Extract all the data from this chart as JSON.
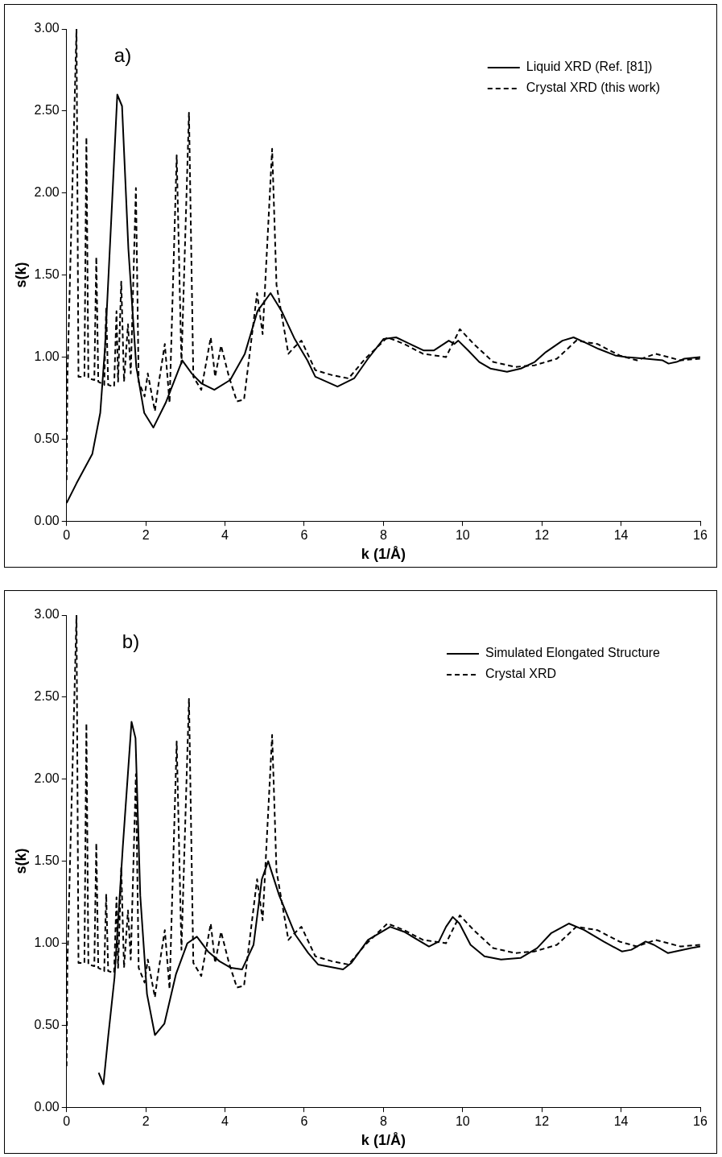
{
  "chart_data": [
    {
      "type": "line",
      "xlabel": "k (1/Å)",
      "ylabel": "s(k)",
      "annotations": [
        "a)"
      ],
      "legend": "top right",
      "marker": "none",
      "grid": false,
      "xlim": [
        0,
        16
      ],
      "xticks": [
        0,
        2,
        4,
        6,
        8,
        10,
        12,
        14,
        16
      ],
      "ylim": [
        0,
        3
      ],
      "yticks": [
        {
          "value": 0,
          "label": "0.00"
        },
        {
          "value": 0.5,
          "label": "0.50"
        },
        {
          "value": 1,
          "label": "1.00"
        },
        {
          "value": 1.5,
          "label": "1.50"
        },
        {
          "value": 2,
          "label": "2.00"
        },
        {
          "value": 2.5,
          "label": "2.50"
        },
        {
          "value": 3,
          "label": "3.00"
        }
      ],
      "series": [
        {
          "name": "Liquid XRD (Ref. [81])",
          "color": "#000000",
          "line_style": "solid",
          "x": [
            0,
            0.25,
            0.65,
            0.85,
            0.97,
            1.13,
            1.28,
            1.4,
            1.56,
            1.76,
            1.96,
            2.19,
            2.5,
            2.92,
            3.16,
            3.4,
            3.73,
            4.13,
            4.5,
            4.82,
            5.15,
            5.43,
            5.76,
            6.08,
            6.28,
            6.84,
            7.26,
            7.61,
            8.0,
            8.32,
            9.02,
            9.27,
            9.65,
            9.79,
            9.89,
            10.14,
            10.42,
            10.7,
            11.12,
            11.47,
            11.82,
            12.1,
            12.52,
            12.8,
            13.08,
            13.43,
            13.85,
            14.13,
            14.62,
            15.05,
            15.2,
            15.4,
            15.6,
            16
          ],
          "values": [
            0.11,
            0.23,
            0.41,
            0.66,
            1.06,
            1.85,
            2.6,
            2.53,
            1.66,
            0.94,
            0.66,
            0.57,
            0.72,
            0.98,
            0.9,
            0.84,
            0.8,
            0.86,
            1.02,
            1.28,
            1.39,
            1.28,
            1.11,
            0.98,
            0.88,
            0.82,
            0.87,
            0.99,
            1.11,
            1.12,
            1.04,
            1.04,
            1.1,
            1.08,
            1.1,
            1.04,
            0.97,
            0.93,
            0.91,
            0.93,
            0.97,
            1.03,
            1.1,
            1.12,
            1.09,
            1.05,
            1.01,
            1.0,
            0.99,
            0.98,
            0.96,
            0.97,
            0.99,
            1.0
          ]
        },
        {
          "name": "Crystal XRD (this work)",
          "color": "#000000",
          "line_style": "dashed",
          "x": [
            0,
            0.02,
            0.25,
            0.3,
            0.45,
            0.5,
            0.55,
            0.7,
            0.75,
            0.8,
            0.95,
            1.0,
            1.05,
            1.2,
            1.26,
            1.3,
            1.38,
            1.45,
            1.55,
            1.62,
            1.75,
            1.82,
            1.97,
            2.05,
            2.23,
            2.3,
            2.48,
            2.6,
            2.78,
            2.9,
            3.09,
            3.2,
            3.4,
            3.64,
            3.75,
            3.9,
            4.1,
            4.3,
            4.48,
            4.81,
            4.95,
            5.19,
            5.3,
            5.6,
            5.75,
            5.93,
            6.28,
            6.7,
            7.12,
            7.54,
            8.1,
            8.52,
            9.0,
            9.58,
            9.93,
            10.28,
            10.77,
            11.33,
            11.82,
            12.38,
            12.87,
            13.4,
            13.96,
            14.4,
            14.87,
            15.5,
            16
          ],
          "values": [
            0.25,
            0.87,
            3.0,
            0.88,
            0.88,
            2.34,
            0.87,
            0.86,
            1.61,
            0.85,
            0.83,
            1.3,
            0.83,
            0.82,
            1.28,
            0.85,
            1.46,
            0.85,
            1.2,
            0.9,
            2.03,
            0.85,
            0.76,
            0.9,
            0.67,
            0.8,
            1.08,
            0.72,
            2.23,
            0.96,
            2.49,
            0.88,
            0.8,
            1.12,
            0.88,
            1.07,
            0.88,
            0.73,
            0.74,
            1.39,
            1.14,
            2.27,
            1.44,
            1.02,
            1.06,
            1.1,
            0.92,
            0.89,
            0.87,
            0.99,
            1.12,
            1.08,
            1.02,
            1.0,
            1.17,
            1.08,
            0.97,
            0.94,
            0.95,
            0.99,
            1.1,
            1.08,
            1.01,
            0.98,
            1.02,
            0.98,
            0.99
          ]
        }
      ]
    },
    {
      "type": "line",
      "xlabel": "k (1/Å)",
      "ylabel": "s(k)",
      "annotations": [
        "b)"
      ],
      "legend": "top right",
      "marker": "none",
      "grid": false,
      "xlim": [
        0,
        16
      ],
      "xticks": [
        0,
        2,
        4,
        6,
        8,
        10,
        12,
        14,
        16
      ],
      "ylim": [
        0,
        3
      ],
      "yticks": [
        {
          "value": 0,
          "label": "0.00"
        },
        {
          "value": 0.5,
          "label": "0.50"
        },
        {
          "value": 1,
          "label": "1.00"
        },
        {
          "value": 1.5,
          "label": "1.50"
        },
        {
          "value": 2,
          "label": "2.00"
        },
        {
          "value": 2.5,
          "label": "2.50"
        },
        {
          "value": 3,
          "label": "3.00"
        }
      ],
      "series": [
        {
          "name": "Simulated Elongated Structure",
          "color": "#000000",
          "line_style": "solid",
          "x": [
            0.81,
            0.93,
            1.05,
            1.21,
            1.42,
            1.64,
            1.74,
            1.86,
            2.03,
            2.23,
            2.47,
            2.76,
            3.05,
            3.29,
            3.57,
            3.86,
            4.15,
            4.43,
            4.72,
            4.93,
            5.09,
            5.37,
            5.78,
            6.1,
            6.35,
            6.98,
            7.19,
            7.61,
            8.17,
            8.52,
            9.15,
            9.4,
            9.58,
            9.75,
            9.92,
            10.2,
            10.55,
            10.97,
            11.46,
            11.88,
            12.23,
            12.68,
            13.07,
            13.56,
            14.02,
            14.26,
            14.62,
            14.83,
            15.18,
            15.77,
            16
          ],
          "values": [
            0.21,
            0.14,
            0.43,
            0.79,
            1.59,
            2.35,
            2.25,
            1.29,
            0.69,
            0.44,
            0.51,
            0.81,
            1.0,
            1.04,
            0.95,
            0.89,
            0.85,
            0.84,
            0.99,
            1.39,
            1.5,
            1.29,
            1.05,
            0.94,
            0.87,
            0.84,
            0.88,
            1.02,
            1.1,
            1.07,
            0.98,
            1.01,
            1.1,
            1.16,
            1.12,
            0.99,
            0.92,
            0.9,
            0.91,
            0.97,
            1.06,
            1.12,
            1.08,
            1.01,
            0.95,
            0.96,
            1.01,
            0.99,
            0.94,
            0.97,
            0.98
          ]
        },
        {
          "name": "Crystal XRD",
          "color": "#000000",
          "line_style": "dashed",
          "x": [
            0,
            0.02,
            0.25,
            0.3,
            0.45,
            0.5,
            0.55,
            0.7,
            0.75,
            0.8,
            0.95,
            1.0,
            1.05,
            1.2,
            1.26,
            1.3,
            1.38,
            1.45,
            1.55,
            1.62,
            1.75,
            1.82,
            1.97,
            2.05,
            2.23,
            2.3,
            2.48,
            2.6,
            2.78,
            2.9,
            3.09,
            3.2,
            3.4,
            3.64,
            3.75,
            3.9,
            4.1,
            4.3,
            4.48,
            4.81,
            4.95,
            5.19,
            5.3,
            5.6,
            5.75,
            5.93,
            6.28,
            6.7,
            7.12,
            7.54,
            8.1,
            8.52,
            9.0,
            9.58,
            9.93,
            10.28,
            10.77,
            11.33,
            11.82,
            12.38,
            12.87,
            13.4,
            13.96,
            14.4,
            14.87,
            15.5,
            16
          ],
          "values": [
            0.25,
            0.87,
            3.0,
            0.88,
            0.88,
            2.34,
            0.87,
            0.86,
            1.61,
            0.85,
            0.83,
            1.3,
            0.83,
            0.82,
            1.28,
            0.85,
            1.46,
            0.85,
            1.2,
            0.9,
            2.03,
            0.85,
            0.76,
            0.9,
            0.67,
            0.8,
            1.08,
            0.72,
            2.23,
            0.96,
            2.49,
            0.88,
            0.8,
            1.12,
            0.88,
            1.07,
            0.88,
            0.73,
            0.74,
            1.39,
            1.14,
            2.27,
            1.44,
            1.02,
            1.06,
            1.1,
            0.92,
            0.89,
            0.87,
            0.99,
            1.12,
            1.08,
            1.02,
            1.0,
            1.17,
            1.08,
            0.97,
            0.94,
            0.95,
            0.99,
            1.1,
            1.08,
            1.01,
            0.98,
            1.02,
            0.98,
            0.99
          ]
        }
      ]
    }
  ]
}
